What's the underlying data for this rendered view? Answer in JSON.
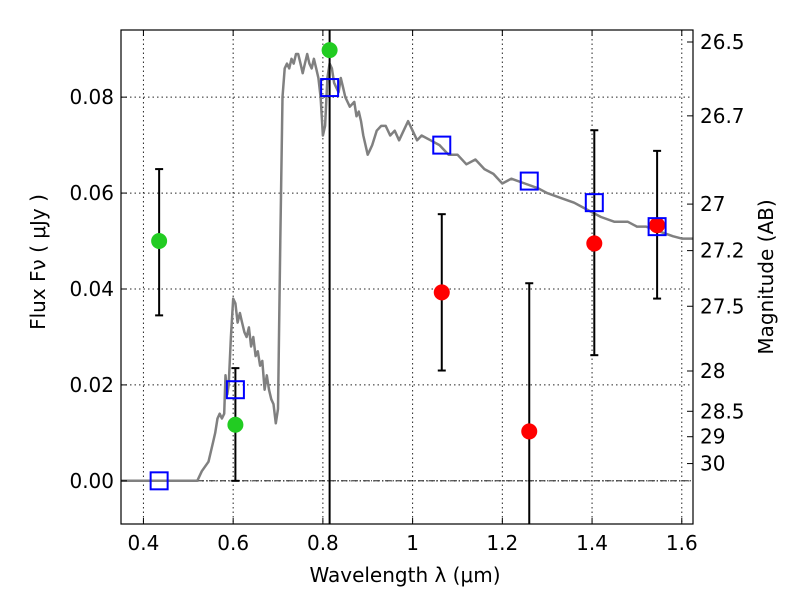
{
  "chart_data": {
    "type": "scatter",
    "xlabel": "Wavelength  λ (μm)",
    "ylabel": "Flux  Fν  ( μJy )",
    "y2label": "Magnitude (AB)",
    "xlim": [
      0.35,
      1.625
    ],
    "ylim": [
      -0.009,
      0.094
    ],
    "grid": true,
    "x_ticks": [
      0.4,
      0.6,
      0.8,
      1.0,
      1.2,
      1.4,
      1.6
    ],
    "x_tick_labels": [
      "0.4",
      "0.6",
      "0.8",
      "1",
      "1.2",
      "1.4",
      "1.6"
    ],
    "y_ticks": [
      0.0,
      0.02,
      0.04,
      0.06,
      0.08
    ],
    "y_tick_labels": [
      "0.00",
      "0.02",
      "0.04",
      "0.06",
      "0.08"
    ],
    "y2_ticks": [
      {
        "label": "26.5",
        "flux": 0.0915
      },
      {
        "label": "26.7",
        "flux": 0.0761
      },
      {
        "label": "27",
        "flux": 0.0577
      },
      {
        "label": "27.2",
        "flux": 0.048
      },
      {
        "label": "27.5",
        "flux": 0.0364
      },
      {
        "label": "28",
        "flux": 0.0229
      },
      {
        "label": "28.5",
        "flux": 0.0145
      },
      {
        "label": "29",
        "flux": 0.0092
      },
      {
        "label": "30",
        "flux": 0.0036
      }
    ],
    "model_sed": {
      "color": "#808080",
      "points": [
        [
          0.35,
          0.0
        ],
        [
          0.52,
          0.0
        ],
        [
          0.53,
          0.002
        ],
        [
          0.545,
          0.004
        ],
        [
          0.555,
          0.008
        ],
        [
          0.56,
          0.01
        ],
        [
          0.565,
          0.013
        ],
        [
          0.57,
          0.014
        ],
        [
          0.575,
          0.013
        ],
        [
          0.58,
          0.014
        ],
        [
          0.583,
          0.022
        ],
        [
          0.587,
          0.018
        ],
        [
          0.59,
          0.02
        ],
        [
          0.595,
          0.03
        ],
        [
          0.6,
          0.038
        ],
        [
          0.605,
          0.037
        ],
        [
          0.61,
          0.033
        ],
        [
          0.615,
          0.035
        ],
        [
          0.62,
          0.033
        ],
        [
          0.625,
          0.031
        ],
        [
          0.63,
          0.03
        ],
        [
          0.635,
          0.032
        ],
        [
          0.64,
          0.028
        ],
        [
          0.645,
          0.03
        ],
        [
          0.65,
          0.026
        ],
        [
          0.655,
          0.027
        ],
        [
          0.66,
          0.024
        ],
        [
          0.665,
          0.025
        ],
        [
          0.67,
          0.019
        ],
        [
          0.675,
          0.022
        ],
        [
          0.68,
          0.019
        ],
        [
          0.685,
          0.017
        ],
        [
          0.69,
          0.016
        ],
        [
          0.695,
          0.012
        ],
        [
          0.7,
          0.015
        ],
        [
          0.705,
          0.05
        ],
        [
          0.71,
          0.08
        ],
        [
          0.715,
          0.086
        ],
        [
          0.72,
          0.087
        ],
        [
          0.725,
          0.086
        ],
        [
          0.73,
          0.088
        ],
        [
          0.735,
          0.087
        ],
        [
          0.74,
          0.089
        ],
        [
          0.745,
          0.089
        ],
        [
          0.75,
          0.087
        ],
        [
          0.755,
          0.085
        ],
        [
          0.76,
          0.087
        ],
        [
          0.765,
          0.089
        ],
        [
          0.77,
          0.087
        ],
        [
          0.775,
          0.086
        ],
        [
          0.78,
          0.088
        ],
        [
          0.785,
          0.086
        ],
        [
          0.79,
          0.084
        ],
        [
          0.795,
          0.08
        ],
        [
          0.8,
          0.072
        ],
        [
          0.805,
          0.074
        ],
        [
          0.81,
          0.084
        ],
        [
          0.815,
          0.087
        ],
        [
          0.82,
          0.086
        ],
        [
          0.825,
          0.083
        ],
        [
          0.83,
          0.082
        ],
        [
          0.835,
          0.081
        ],
        [
          0.84,
          0.084
        ],
        [
          0.845,
          0.082
        ],
        [
          0.85,
          0.08
        ],
        [
          0.86,
          0.078
        ],
        [
          0.87,
          0.079
        ],
        [
          0.875,
          0.076
        ],
        [
          0.88,
          0.077
        ],
        [
          0.885,
          0.075
        ],
        [
          0.89,
          0.072
        ],
        [
          0.9,
          0.068
        ],
        [
          0.905,
          0.069
        ],
        [
          0.91,
          0.07
        ],
        [
          0.92,
          0.073
        ],
        [
          0.93,
          0.074
        ],
        [
          0.94,
          0.074
        ],
        [
          0.95,
          0.072
        ],
        [
          0.96,
          0.073
        ],
        [
          0.97,
          0.071
        ],
        [
          0.98,
          0.073
        ],
        [
          0.99,
          0.075
        ],
        [
          1.0,
          0.073
        ],
        [
          1.01,
          0.071
        ],
        [
          1.02,
          0.072
        ],
        [
          1.04,
          0.071
        ],
        [
          1.06,
          0.07
        ],
        [
          1.08,
          0.068
        ],
        [
          1.1,
          0.068
        ],
        [
          1.12,
          0.066
        ],
        [
          1.14,
          0.067
        ],
        [
          1.16,
          0.065
        ],
        [
          1.18,
          0.064
        ],
        [
          1.2,
          0.062
        ],
        [
          1.22,
          0.063
        ],
        [
          1.25,
          0.062
        ],
        [
          1.28,
          0.061
        ],
        [
          1.3,
          0.06
        ],
        [
          1.33,
          0.059
        ],
        [
          1.36,
          0.058
        ],
        [
          1.38,
          0.057
        ],
        [
          1.4,
          0.056
        ],
        [
          1.42,
          0.055
        ],
        [
          1.45,
          0.054
        ],
        [
          1.48,
          0.054
        ],
        [
          1.5,
          0.053
        ],
        [
          1.52,
          0.053
        ],
        [
          1.55,
          0.052
        ],
        [
          1.58,
          0.051
        ],
        [
          1.6,
          0.0505
        ],
        [
          1.625,
          0.0505
        ]
      ]
    },
    "model_bandpass": {
      "marker": "open-square",
      "color": "#0000ff",
      "points": [
        [
          0.435,
          0.0
        ],
        [
          0.605,
          0.019
        ],
        [
          0.815,
          0.082
        ],
        [
          1.065,
          0.07
        ],
        [
          1.26,
          0.0625
        ],
        [
          1.405,
          0.058
        ],
        [
          1.545,
          0.053
        ]
      ]
    },
    "observed_detections": {
      "color": "#22cc22",
      "points": [
        {
          "x": 0.435,
          "y": 0.05,
          "err_lo": 0.0345,
          "err_hi": 0.065
        },
        {
          "x": 0.605,
          "y": 0.0117,
          "err_lo": 0.0,
          "err_hi": 0.0235
        },
        {
          "x": 0.815,
          "y": 0.0898,
          "err_lo": null,
          "err_hi": 0.094
        }
      ]
    },
    "observed_nondetections": {
      "color": "#ff0000",
      "points": [
        {
          "x": 1.065,
          "y": 0.0393,
          "err_lo": 0.023,
          "err_hi": 0.0556
        },
        {
          "x": 1.26,
          "y": 0.0103,
          "err_lo": -0.009,
          "err_hi": 0.0412
        },
        {
          "x": 1.405,
          "y": 0.0495,
          "err_lo": 0.0262,
          "err_hi": 0.0731
        },
        {
          "x": 1.545,
          "y": 0.0533,
          "err_lo": 0.038,
          "err_hi": 0.0688
        }
      ]
    }
  }
}
